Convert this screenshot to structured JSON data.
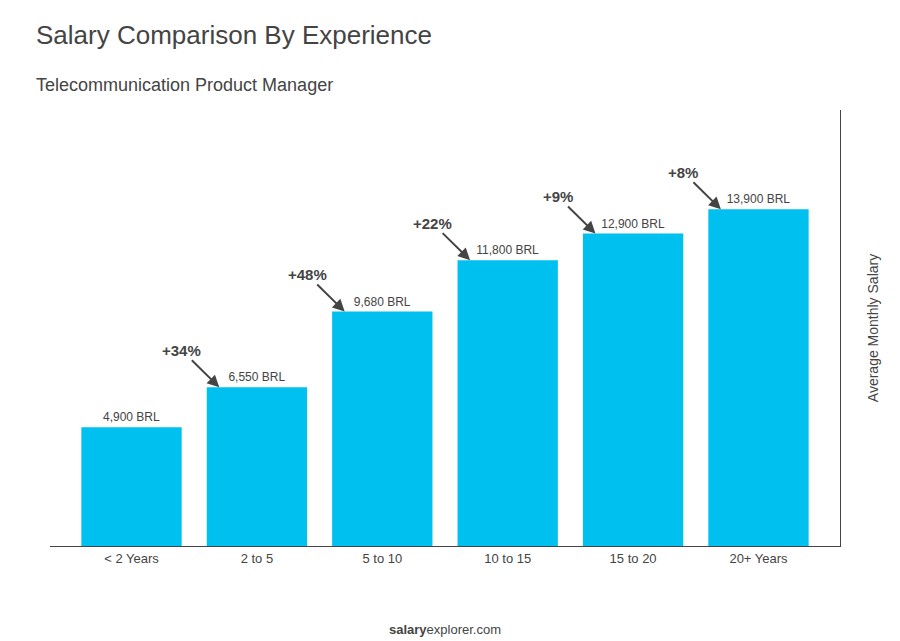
{
  "chart_data": {
    "type": "bar",
    "title": "Salary Comparison By Experience",
    "subtitle": "Telecommunication Product Manager",
    "ylabel": "Average Monthly Salary",
    "categories": [
      "< 2 Years",
      "2 to 5",
      "5 to 10",
      "10 to 15",
      "15 to 20",
      "20+ Years"
    ],
    "values": [
      4900,
      6550,
      9680,
      11800,
      12900,
      13900
    ],
    "value_labels": [
      "4,900 BRL",
      "6,550 BRL",
      "9,680 BRL",
      "11,800 BRL",
      "12,900 BRL",
      "13,900 BRL"
    ],
    "data_labels": true,
    "color": "#00C0F0",
    "annotations": [
      "+34%",
      "+48%",
      "+22%",
      "+9%",
      "+8%"
    ],
    "footer": [
      "salary",
      "explorer.com"
    ],
    "ylim": [
      0,
      18000
    ],
    "grid": false,
    "tick_labels": "x"
  }
}
